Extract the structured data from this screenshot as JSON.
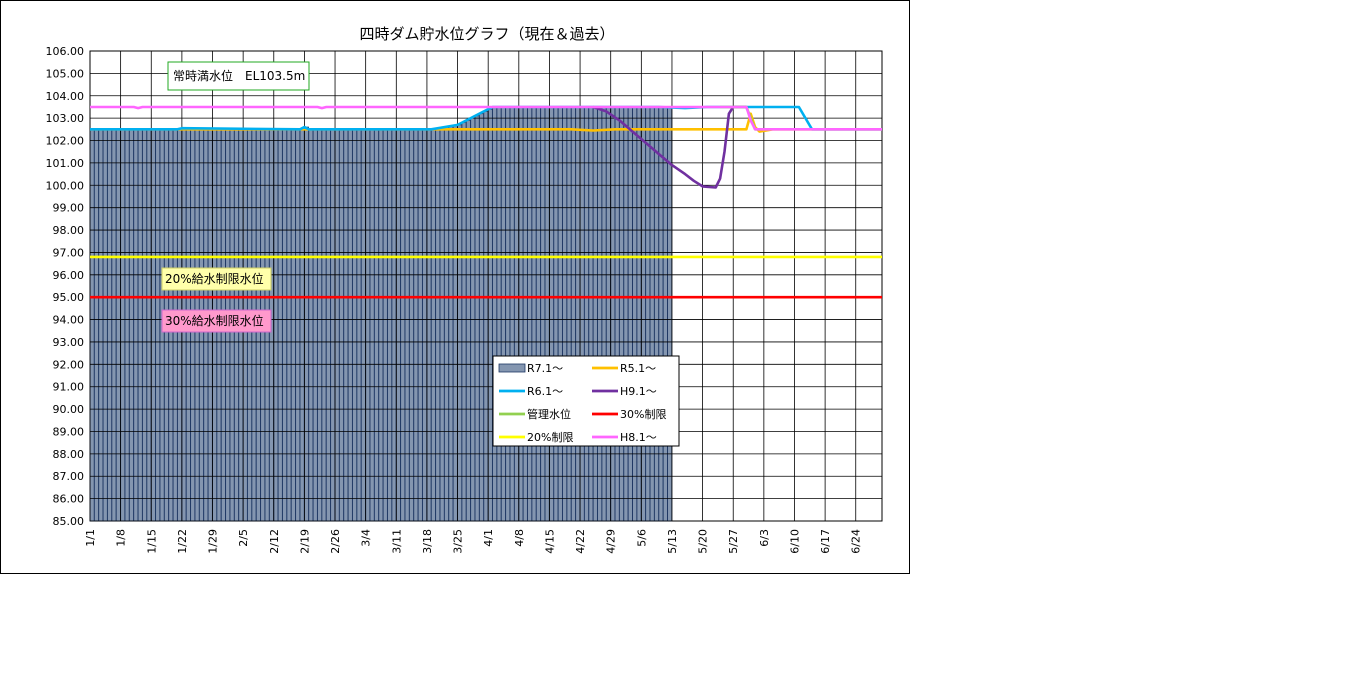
{
  "chart_data": {
    "type": "bar",
    "title": "四時ダム貯水位グラフ（現在＆過去）",
    "xlabel": "",
    "ylabel": "",
    "ylim": [
      85,
      106
    ],
    "ytick_step": 1,
    "x_tick_labels": [
      "1/1",
      "1/8",
      "1/15",
      "1/22",
      "1/29",
      "2/5",
      "2/12",
      "2/19",
      "2/26",
      "3/4",
      "3/11",
      "3/18",
      "3/25",
      "4/1",
      "4/8",
      "4/15",
      "4/22",
      "4/29",
      "5/6",
      "5/13",
      "5/20",
      "5/27",
      "6/3",
      "6/10",
      "6/17",
      "6/24"
    ],
    "x_day_range": [
      0,
      181
    ],
    "grid": true,
    "legend_position": "center-right",
    "annotations": [
      {
        "text": "常時満水位　EL103.5m",
        "border": "#22aa22",
        "fill": "#ffffff"
      },
      {
        "text": "20%給水制限水位",
        "border": "#cccc66",
        "fill": "#ffffaa"
      },
      {
        "text": "30%給水制限水位",
        "border": "#cc66cc",
        "fill": "#ff99cc"
      }
    ],
    "series": [
      {
        "name": "R7.1～",
        "kind": "bar",
        "color": "#8496b0",
        "edge": "#1f3864",
        "days": [
          0,
          132
        ],
        "points": [
          [
            0,
            102.5
          ],
          [
            20,
            102.5
          ],
          [
            21,
            102.55
          ],
          [
            48,
            102.5
          ],
          [
            49,
            102.6
          ],
          [
            50,
            102.5
          ],
          [
            76,
            102.5
          ],
          [
            78,
            102.5
          ],
          [
            84,
            102.7
          ],
          [
            87,
            103.0
          ],
          [
            90,
            103.3
          ],
          [
            92,
            103.5
          ],
          [
            132,
            103.5
          ]
        ]
      },
      {
        "name": "R5.1～",
        "kind": "line",
        "color": "#ffc000",
        "points": [
          [
            0,
            102.5
          ],
          [
            80,
            102.5
          ],
          [
            110,
            102.5
          ],
          [
            115,
            102.45
          ],
          [
            120,
            102.5
          ],
          [
            150,
            102.5
          ],
          [
            151,
            103.2
          ],
          [
            152,
            102.6
          ],
          [
            153,
            102.4
          ],
          [
            156,
            102.5
          ],
          [
            181,
            102.5
          ]
        ]
      },
      {
        "name": "R6.1～",
        "kind": "line",
        "color": "#00b0f0",
        "points": [
          [
            0,
            102.5
          ],
          [
            20,
            102.5
          ],
          [
            21,
            102.55
          ],
          [
            48,
            102.5
          ],
          [
            49,
            102.6
          ],
          [
            50,
            102.5
          ],
          [
            76,
            102.5
          ],
          [
            78,
            102.5
          ],
          [
            84,
            102.7
          ],
          [
            87,
            103.0
          ],
          [
            90,
            103.3
          ],
          [
            92,
            103.5
          ],
          [
            130,
            103.5
          ],
          [
            136,
            103.45
          ],
          [
            141,
            103.5
          ],
          [
            160,
            103.5
          ],
          [
            162,
            103.5
          ],
          [
            165,
            102.5
          ],
          [
            181,
            102.5
          ]
        ]
      },
      {
        "name": "H9.1～",
        "kind": "line",
        "color": "#7030a0",
        "points": [
          [
            115,
            103.5
          ],
          [
            118,
            103.3
          ],
          [
            121,
            102.9
          ],
          [
            124,
            102.4
          ],
          [
            127,
            101.9
          ],
          [
            130,
            101.4
          ],
          [
            133,
            100.9
          ],
          [
            136,
            100.5
          ],
          [
            138,
            100.2
          ],
          [
            140,
            99.95
          ],
          [
            143,
            99.9
          ],
          [
            144,
            100.3
          ],
          [
            145,
            101.5
          ],
          [
            146,
            103.2
          ],
          [
            147,
            103.5
          ],
          [
            150,
            103.5
          ]
        ]
      },
      {
        "name": "管理水位",
        "kind": "line",
        "color": "#92d050",
        "points": [
          [
            144,
            103.5
          ],
          [
            150,
            103.5
          ],
          [
            151,
            103.0
          ],
          [
            152,
            102.5
          ],
          [
            155,
            102.5
          ]
        ]
      },
      {
        "name": "30%制限",
        "kind": "line",
        "color": "#ff0000",
        "points": [
          [
            0,
            95.0
          ],
          [
            181,
            95.0
          ]
        ]
      },
      {
        "name": "20%制限",
        "kind": "line",
        "color": "#ffff00",
        "points": [
          [
            0,
            96.8
          ],
          [
            181,
            96.8
          ]
        ]
      },
      {
        "name": "H8.1～",
        "kind": "line",
        "color": "#ff66ff",
        "points": [
          [
            0,
            103.5
          ],
          [
            10,
            103.5
          ],
          [
            11,
            103.45
          ],
          [
            12,
            103.5
          ],
          [
            52,
            103.5
          ],
          [
            53,
            103.45
          ],
          [
            54,
            103.5
          ],
          [
            150,
            103.5
          ],
          [
            151,
            102.9
          ],
          [
            152,
            102.5
          ],
          [
            181,
            102.5
          ]
        ]
      }
    ]
  }
}
